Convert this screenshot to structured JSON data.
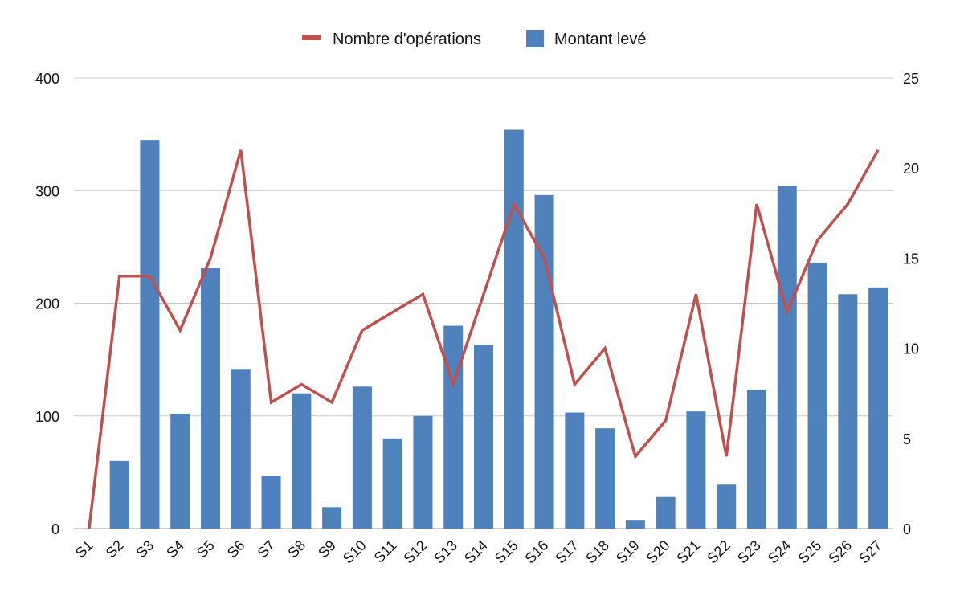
{
  "chart_data": {
    "type": "bar",
    "categories": [
      "S1",
      "S2",
      "S3",
      "S4",
      "S5",
      "S6",
      "S7",
      "S8",
      "S9",
      "S10",
      "S11",
      "S12",
      "S13",
      "S14",
      "S15",
      "S16",
      "S17",
      "S18",
      "S19",
      "S20",
      "S21",
      "S22",
      "S23",
      "S24",
      "S25",
      "S26",
      "S27"
    ],
    "series": [
      {
        "name": "Montant levé",
        "type": "bar",
        "axis": "left",
        "color": "#4f81bd",
        "values": [
          0,
          60,
          345,
          102,
          231,
          141,
          47,
          120,
          19,
          126,
          80,
          100,
          180,
          163,
          354,
          296,
          103,
          89,
          7,
          28,
          104,
          39,
          123,
          304,
          236,
          208,
          214
        ]
      },
      {
        "name": "Nombre d'opérations",
        "type": "line",
        "axis": "right",
        "color": "#c0504d",
        "values": [
          0,
          14,
          14,
          11,
          15,
          21,
          7,
          8,
          7,
          11,
          12,
          13,
          8,
          13,
          18,
          15,
          8,
          10,
          4,
          6,
          13,
          4,
          18,
          12,
          16,
          18,
          21
        ]
      }
    ],
    "y_left": {
      "min": 0,
      "max": 400,
      "ticks": [
        0,
        100,
        200,
        300,
        400
      ]
    },
    "y_right": {
      "min": 0,
      "max": 25,
      "ticks": [
        0,
        5,
        10,
        15,
        20,
        25
      ]
    },
    "grid": true,
    "legend_position": "top-center",
    "title": "",
    "xlabel": "",
    "ylabel": ""
  }
}
